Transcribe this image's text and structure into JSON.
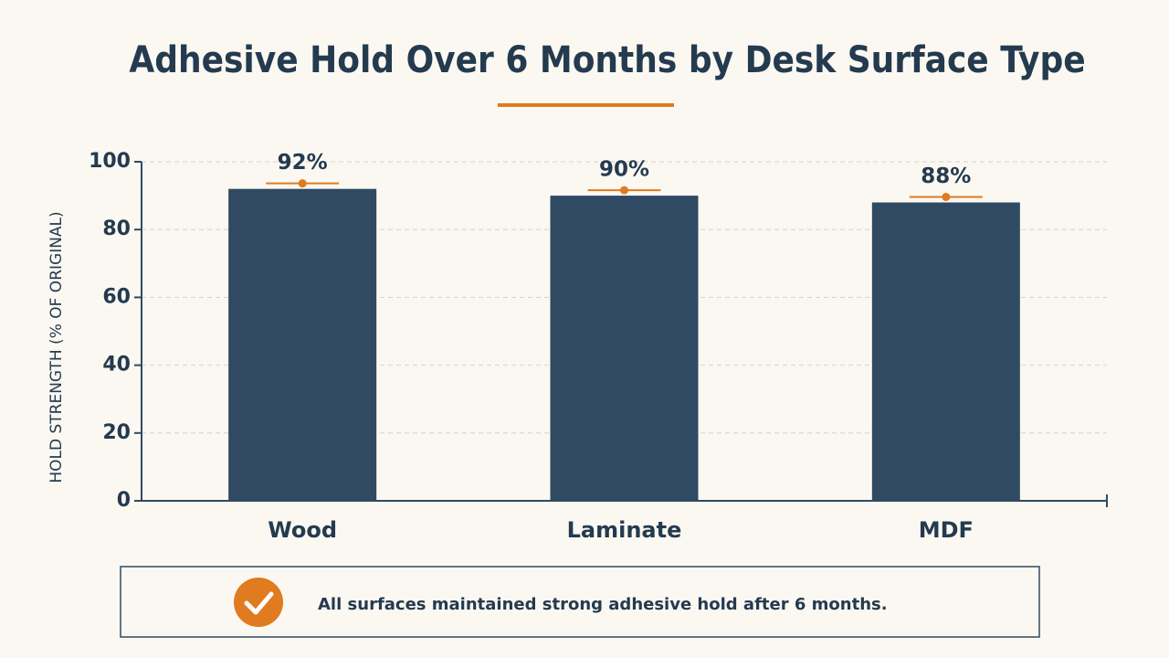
{
  "chart_data": {
    "type": "bar",
    "title": "Adhesive Hold Over 6 Months by Desk Surface Type",
    "y_label": "HOLD STRENGTH (% OF ORIGINAL)",
    "categories": [
      "Wood",
      "Laminate",
      "MDF"
    ],
    "values": [
      92,
      90,
      88
    ],
    "value_labels": [
      "92%",
      "90%",
      "88%"
    ],
    "color": "#2f4a62",
    "marker_color": "#e07b1f",
    "ylim": [
      0,
      100
    ],
    "yticks": [
      0,
      20,
      40,
      60,
      80,
      100
    ],
    "grid": true,
    "footnote": "All surfaces maintained strong adhesive hold after 6 months."
  }
}
